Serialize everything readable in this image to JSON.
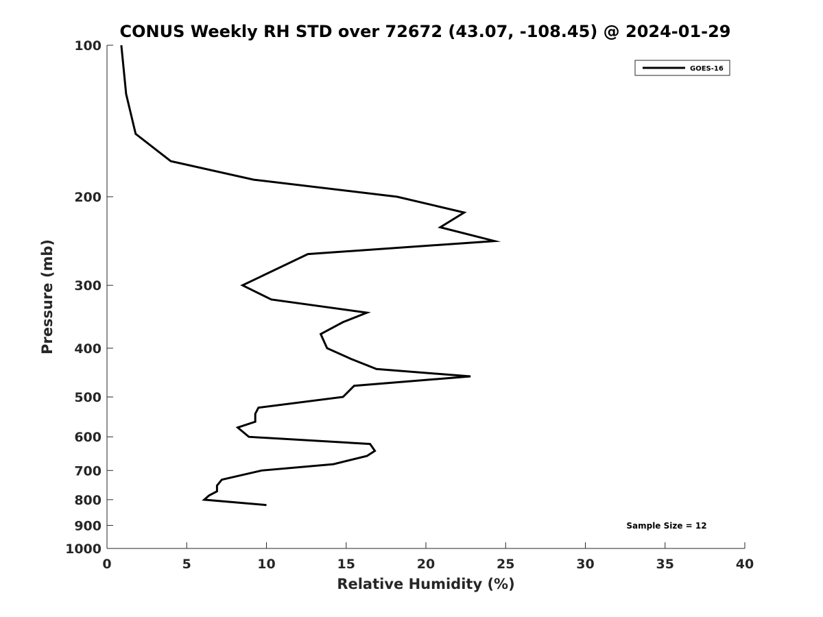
{
  "chart_data": {
    "type": "line",
    "title": "CONUS Weekly RH STD over 72672 (43.07, -108.45) @ 2024-01-29",
    "xlabel": "Relative Humidity (%)",
    "ylabel": "Pressure (mb)",
    "xlim": [
      0,
      40
    ],
    "ylim": [
      100,
      1000
    ],
    "y_scale": "log",
    "y_reversed": true,
    "xticks": [
      0,
      5,
      10,
      15,
      20,
      25,
      30,
      35,
      40
    ],
    "yticks": [
      100,
      200,
      300,
      400,
      500,
      600,
      700,
      800,
      900,
      1000
    ],
    "grid": false,
    "legend_position": "top-right",
    "series": [
      {
        "name": "GOES-16",
        "color": "#000000",
        "points": [
          {
            "x": 0.9,
            "y": 100
          },
          {
            "x": 1.2,
            "y": 125
          },
          {
            "x": 1.8,
            "y": 150
          },
          {
            "x": 4.0,
            "y": 170
          },
          {
            "x": 9.2,
            "y": 185
          },
          {
            "x": 18.2,
            "y": 200
          },
          {
            "x": 22.4,
            "y": 215
          },
          {
            "x": 20.9,
            "y": 230
          },
          {
            "x": 24.3,
            "y": 245
          },
          {
            "x": 12.6,
            "y": 260
          },
          {
            "x": 8.5,
            "y": 300
          },
          {
            "x": 10.3,
            "y": 320
          },
          {
            "x": 16.3,
            "y": 340
          },
          {
            "x": 14.8,
            "y": 355
          },
          {
            "x": 13.4,
            "y": 375
          },
          {
            "x": 13.8,
            "y": 400
          },
          {
            "x": 15.3,
            "y": 420
          },
          {
            "x": 16.9,
            "y": 440
          },
          {
            "x": 22.8,
            "y": 455
          },
          {
            "x": 15.5,
            "y": 475
          },
          {
            "x": 14.8,
            "y": 500
          },
          {
            "x": 9.5,
            "y": 525
          },
          {
            "x": 9.3,
            "y": 540
          },
          {
            "x": 9.3,
            "y": 560
          },
          {
            "x": 8.2,
            "y": 575
          },
          {
            "x": 8.9,
            "y": 600
          },
          {
            "x": 16.5,
            "y": 620
          },
          {
            "x": 16.8,
            "y": 640
          },
          {
            "x": 16.3,
            "y": 655
          },
          {
            "x": 14.2,
            "y": 680
          },
          {
            "x": 9.7,
            "y": 700
          },
          {
            "x": 7.2,
            "y": 730
          },
          {
            "x": 6.9,
            "y": 750
          },
          {
            "x": 6.9,
            "y": 770
          },
          {
            "x": 6.4,
            "y": 785
          },
          {
            "x": 6.1,
            "y": 800
          },
          {
            "x": 10.0,
            "y": 820
          }
        ]
      }
    ],
    "annotations": [
      {
        "text": "Sample Size = 12",
        "position": "bottom-right"
      }
    ]
  }
}
